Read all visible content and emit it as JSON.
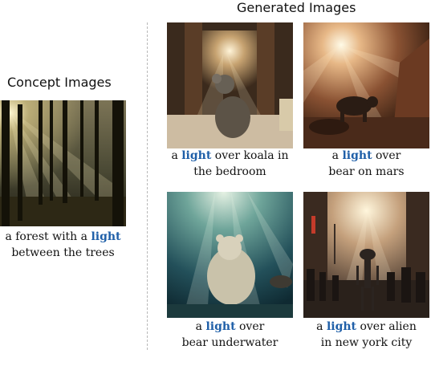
{
  "headings": {
    "concept": "Concept Images",
    "generated": "Generated Images"
  },
  "highlight_color": "#1f5fa8",
  "concept": {
    "image_icon": "forest-light-photo",
    "caption": {
      "pre": "a forest with a ",
      "word": "light",
      "post": "between the trees"
    }
  },
  "generated": [
    {
      "image_icon": "koala-bedroom-photo",
      "caption": {
        "pre": "a ",
        "word": "light",
        "mid": " over koala in",
        "post": "the bedroom"
      }
    },
    {
      "image_icon": "bear-mars-photo",
      "caption": {
        "pre": "a ",
        "word": "light",
        "mid": " over",
        "post": "bear on mars"
      }
    },
    {
      "image_icon": "bear-underwater-photo",
      "caption": {
        "pre": "a ",
        "word": "light",
        "mid": " over",
        "post": "bear underwater"
      }
    },
    {
      "image_icon": "alien-newyork-photo",
      "caption": {
        "pre": "a ",
        "word": "light",
        "mid": " over alien",
        "post": "in new york city"
      }
    }
  ]
}
